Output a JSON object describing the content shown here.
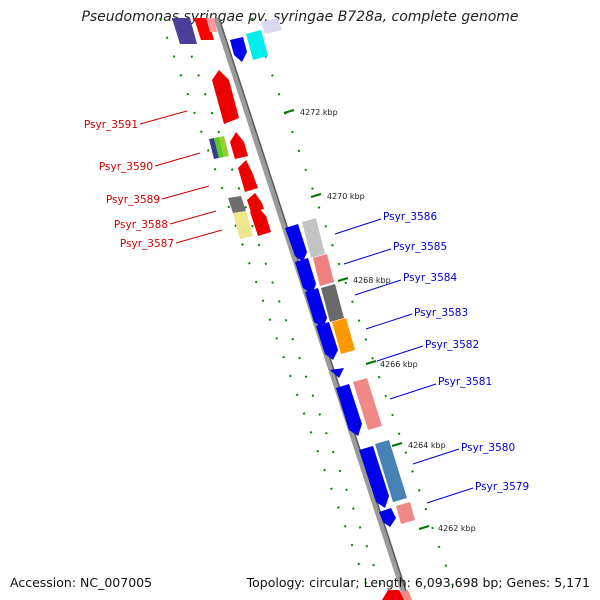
{
  "title": "Pseudomonas syringae pv. syringae B728a, complete genome",
  "accession": "Accession: NC_007005",
  "summary": "Topology: circular; Length: 6,093,698 bp; Genes: 5,171",
  "ticks": [
    "4272 kbp",
    "4270 kbp",
    "4268 kbp",
    "4266 kbp",
    "4264 kbp",
    "4262 kbp"
  ],
  "genes_left": [
    "Psyr_3591",
    "Psyr_3590",
    "Psyr_3589",
    "Psyr_3588",
    "Psyr_3587"
  ],
  "genes_right": [
    "Psyr_3586",
    "Psyr_3585",
    "Psyr_3584",
    "Psyr_3583",
    "Psyr_3582",
    "Psyr_3581",
    "Psyr_3580",
    "Psyr_3579"
  ],
  "colors": {
    "forward_gene": "#ff0000",
    "reverse_gene": "#0000ff",
    "backbone": "#888888",
    "tick": "#007700",
    "left_label": "#cc0000",
    "right_label": "#0000cc"
  }
}
